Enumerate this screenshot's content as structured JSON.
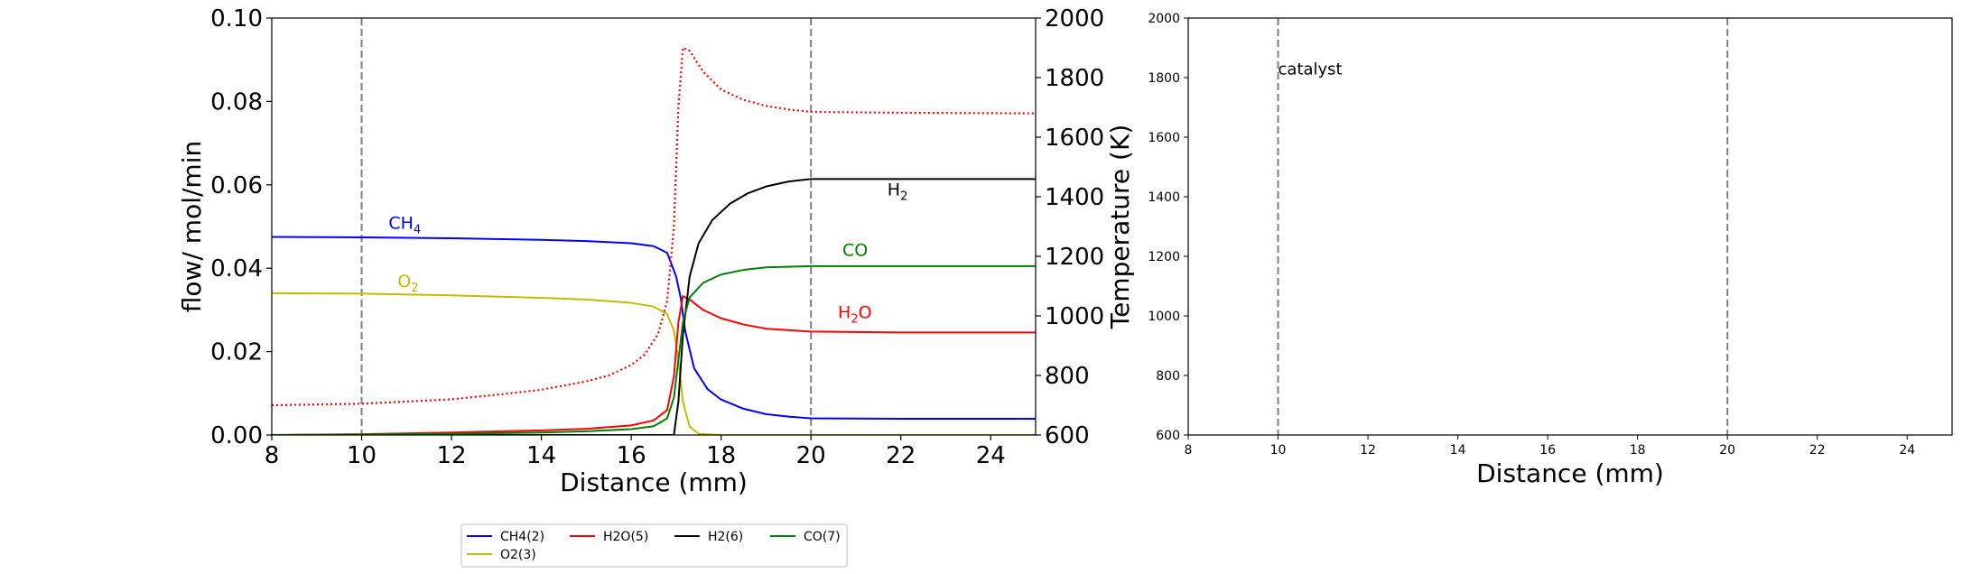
{
  "chart_data": [
    {
      "type": "line",
      "xlabel": "Distance (mm)",
      "ylabel": "flow/ mol/min",
      "y2label": "Temperature (K)",
      "xlim": [
        8,
        25
      ],
      "ylim": [
        0,
        0.1
      ],
      "y2lim": [
        600,
        2000
      ],
      "xticks": [
        8,
        10,
        12,
        14,
        16,
        18,
        20,
        22,
        24
      ],
      "xtick_labels": [
        "8",
        "10",
        "12",
        "14",
        "16",
        "18",
        "20",
        "22",
        "24"
      ],
      "yticks": [
        0.0,
        0.02,
        0.04,
        0.06,
        0.08,
        0.1
      ],
      "ytick_labels": [
        "0.00",
        "0.02",
        "0.04",
        "0.06",
        "0.08",
        "0.10"
      ],
      "y2ticks": [
        600,
        800,
        1000,
        1200,
        1400,
        1600,
        1800,
        2000
      ],
      "y2tick_labels": [
        "600",
        "800",
        "1000",
        "1200",
        "1400",
        "1600",
        "1800",
        "2000"
      ],
      "vlines": [
        10,
        20
      ],
      "grid": false,
      "legend_placement": "below the chart",
      "series": [
        {
          "name": "CH4(2)",
          "color": "#0000ff",
          "style": "solid",
          "axis": "left",
          "x": [
            8,
            10,
            12,
            14,
            15,
            16,
            16.5,
            16.8,
            17.0,
            17.1,
            17.2,
            17.4,
            17.7,
            18,
            18.5,
            19,
            19.5,
            20,
            22,
            25
          ],
          "y": [
            0.0475,
            0.0474,
            0.0472,
            0.0468,
            0.0465,
            0.046,
            0.0453,
            0.0437,
            0.038,
            0.033,
            0.025,
            0.016,
            0.011,
            0.0085,
            0.0063,
            0.005,
            0.0044,
            0.004,
            0.0039,
            0.0039
          ]
        },
        {
          "name": "O2(3)",
          "color": "#bfbf00",
          "style": "solid",
          "axis": "left",
          "x": [
            8,
            10,
            12,
            14,
            15,
            16,
            16.5,
            16.8,
            16.95,
            17.05,
            17.15,
            17.3,
            17.5,
            18,
            25
          ],
          "y": [
            0.034,
            0.0339,
            0.0335,
            0.0329,
            0.0325,
            0.0317,
            0.0308,
            0.029,
            0.025,
            0.018,
            0.008,
            0.002,
            0.0003,
            0.0,
            0.0
          ]
        },
        {
          "name": "H2O(5)",
          "color": "#ff0000",
          "style": "solid",
          "axis": "left",
          "x": [
            8,
            10,
            12,
            14,
            15,
            16,
            16.5,
            16.8,
            16.95,
            17.05,
            17.15,
            17.3,
            17.6,
            18,
            18.5,
            19,
            20,
            22,
            25
          ],
          "y": [
            0.0,
            0.0002,
            0.0006,
            0.0011,
            0.0015,
            0.0023,
            0.0035,
            0.006,
            0.014,
            0.027,
            0.0333,
            0.0325,
            0.03,
            0.028,
            0.0265,
            0.0255,
            0.0248,
            0.0246,
            0.0246
          ]
        },
        {
          "name": "H2(6)",
          "color": "#000000",
          "style": "solid",
          "axis": "left",
          "x": [
            8,
            16.95,
            17.05,
            17.15,
            17.3,
            17.5,
            17.8,
            18.2,
            18.6,
            19,
            19.5,
            20,
            22,
            25
          ],
          "y": [
            0.0,
            0.0,
            0.008,
            0.024,
            0.038,
            0.046,
            0.0515,
            0.0555,
            0.058,
            0.0596,
            0.0608,
            0.0614,
            0.0614,
            0.0614
          ]
        },
        {
          "name": "CO(7)",
          "color": "#008000",
          "style": "solid",
          "axis": "left",
          "x": [
            8,
            10,
            12,
            14,
            15,
            16,
            16.5,
            16.8,
            16.95,
            17.05,
            17.15,
            17.3,
            17.6,
            18,
            18.5,
            19,
            20,
            22,
            25
          ],
          "y": [
            0.0,
            0.0001,
            0.0003,
            0.0006,
            0.0009,
            0.0014,
            0.0021,
            0.004,
            0.009,
            0.018,
            0.027,
            0.033,
            0.0365,
            0.0385,
            0.0396,
            0.0402,
            0.0405,
            0.0405,
            0.0405
          ]
        },
        {
          "name": "Temperature",
          "color": "#ff0000",
          "style": "dotted",
          "axis": "right",
          "x": [
            8,
            10,
            12,
            13,
            14,
            15,
            15.5,
            16,
            16.3,
            16.6,
            16.8,
            16.95,
            17.05,
            17.15,
            17.3,
            17.6,
            18,
            18.5,
            19,
            19.5,
            20,
            22,
            25
          ],
          "y": [
            700,
            705,
            720,
            735,
            752,
            780,
            800,
            835,
            870,
            940,
            1050,
            1300,
            1700,
            1900,
            1890,
            1820,
            1760,
            1725,
            1705,
            1693,
            1685,
            1682,
            1680
          ]
        }
      ],
      "annotations": [
        {
          "text": "CH",
          "sub": "4",
          "x": 10.6,
          "y": 0.0495,
          "color": "#0000ff"
        },
        {
          "text": "O",
          "sub": "2",
          "x": 10.8,
          "y": 0.0355,
          "color": "#bfbf00"
        },
        {
          "text": "H",
          "sub": "2",
          "x": 21.7,
          "y": 0.0575,
          "color": "#000000"
        },
        {
          "text": "CO",
          "sub": "",
          "x": 20.7,
          "y": 0.043,
          "color": "#008000"
        },
        {
          "text": "H",
          "sub": "2",
          "post": "O",
          "x": 20.6,
          "y": 0.028,
          "color": "#ff0000"
        }
      ]
    },
    {
      "type": "line",
      "xlabel": "Distance (mm)",
      "xlim": [
        8,
        25
      ],
      "ylim": [
        600,
        2000
      ],
      "xticks": [
        8,
        10,
        12,
        14,
        16,
        18,
        20,
        22,
        24
      ],
      "xtick_labels": [
        "8",
        "10",
        "12",
        "14",
        "16",
        "18",
        "20",
        "22",
        "24"
      ],
      "yticks": [
        600,
        800,
        1000,
        1200,
        1400,
        1600,
        1800,
        2000
      ],
      "ytick_labels": [
        "600",
        "800",
        "1000",
        "1200",
        "1400",
        "1600",
        "1800",
        "2000"
      ],
      "vlines": [
        10,
        20
      ],
      "grid": false,
      "series": [],
      "annotations": [
        {
          "text": "catalyst",
          "x": 10.0,
          "y": 1810,
          "color": "#000000"
        }
      ]
    }
  ],
  "legend": {
    "entries": [
      {
        "label": "CH4(2)",
        "color": "#0000ff"
      },
      {
        "label": "H2O(5)",
        "color": "#ff0000"
      },
      {
        "label": "H2(6)",
        "color": "#000000"
      },
      {
        "label": "CO(7)",
        "color": "#008000"
      },
      {
        "label": "O2(3)",
        "color": "#bfbf00"
      }
    ]
  },
  "colors": {
    "vline": "#808080",
    "axis": "#000000",
    "legend_border": "#cccccc"
  }
}
